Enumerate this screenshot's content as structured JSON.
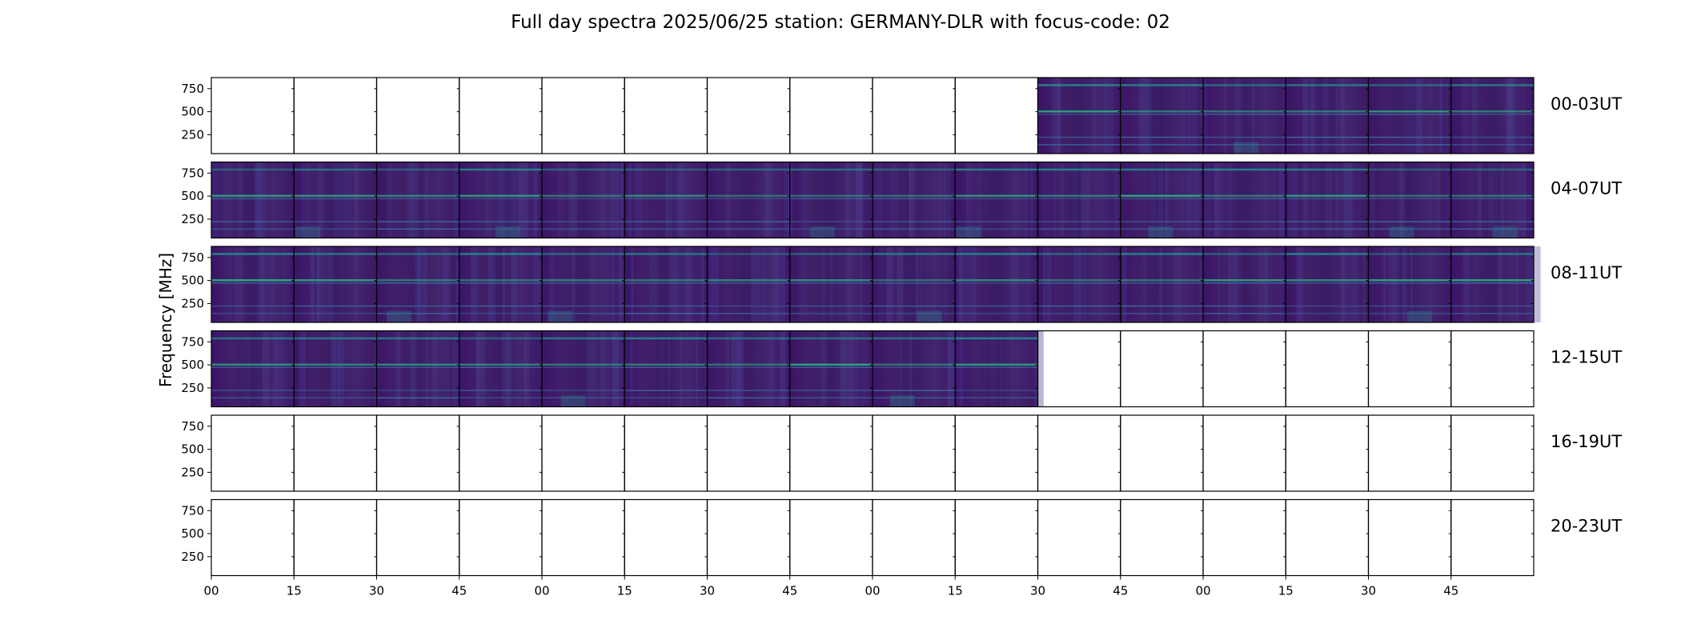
{
  "chart_data": {
    "type": "heatmap",
    "title": "Full day spectra 2025/06/25 station: GERMANY-DLR with focus-code: 02",
    "ylabel": "Frequency [MHz]",
    "xlabel": "",
    "y_ticks": [
      "750",
      "500",
      "250"
    ],
    "ylim": [
      45,
      870
    ],
    "x_ticks": [
      "00",
      "15",
      "30",
      "45",
      "00",
      "15",
      "30",
      "45",
      "00",
      "15",
      "30",
      "45",
      "00",
      "15",
      "30",
      "45"
    ],
    "colormap": "viridis",
    "rows": [
      {
        "label": "00-03UT",
        "panels": [
          0,
          0,
          0,
          0,
          0,
          0,
          0,
          0,
          0,
          0,
          1,
          1,
          1,
          1,
          1,
          1
        ]
      },
      {
        "label": "04-07UT",
        "panels": [
          1,
          1,
          1,
          1,
          1,
          1,
          1,
          1,
          1,
          1,
          1,
          1,
          1,
          1,
          1,
          1
        ]
      },
      {
        "label": "08-11UT",
        "panels": [
          1,
          1,
          1,
          1,
          1,
          1,
          1,
          1,
          1,
          1,
          1,
          1,
          1,
          1,
          1,
          1
        ]
      },
      {
        "label": "12-15UT",
        "panels": [
          1,
          1,
          1,
          1,
          1,
          1,
          1,
          1,
          1,
          1,
          0,
          0,
          0,
          0,
          0,
          0
        ]
      },
      {
        "label": "16-19UT",
        "panels": [
          0,
          0,
          0,
          0,
          0,
          0,
          0,
          0,
          0,
          0,
          0,
          0,
          0,
          0,
          0,
          0
        ]
      },
      {
        "label": "20-23UT",
        "panels": [
          0,
          0,
          0,
          0,
          0,
          0,
          0,
          0,
          0,
          0,
          0,
          0,
          0,
          0,
          0,
          0
        ]
      }
    ]
  }
}
